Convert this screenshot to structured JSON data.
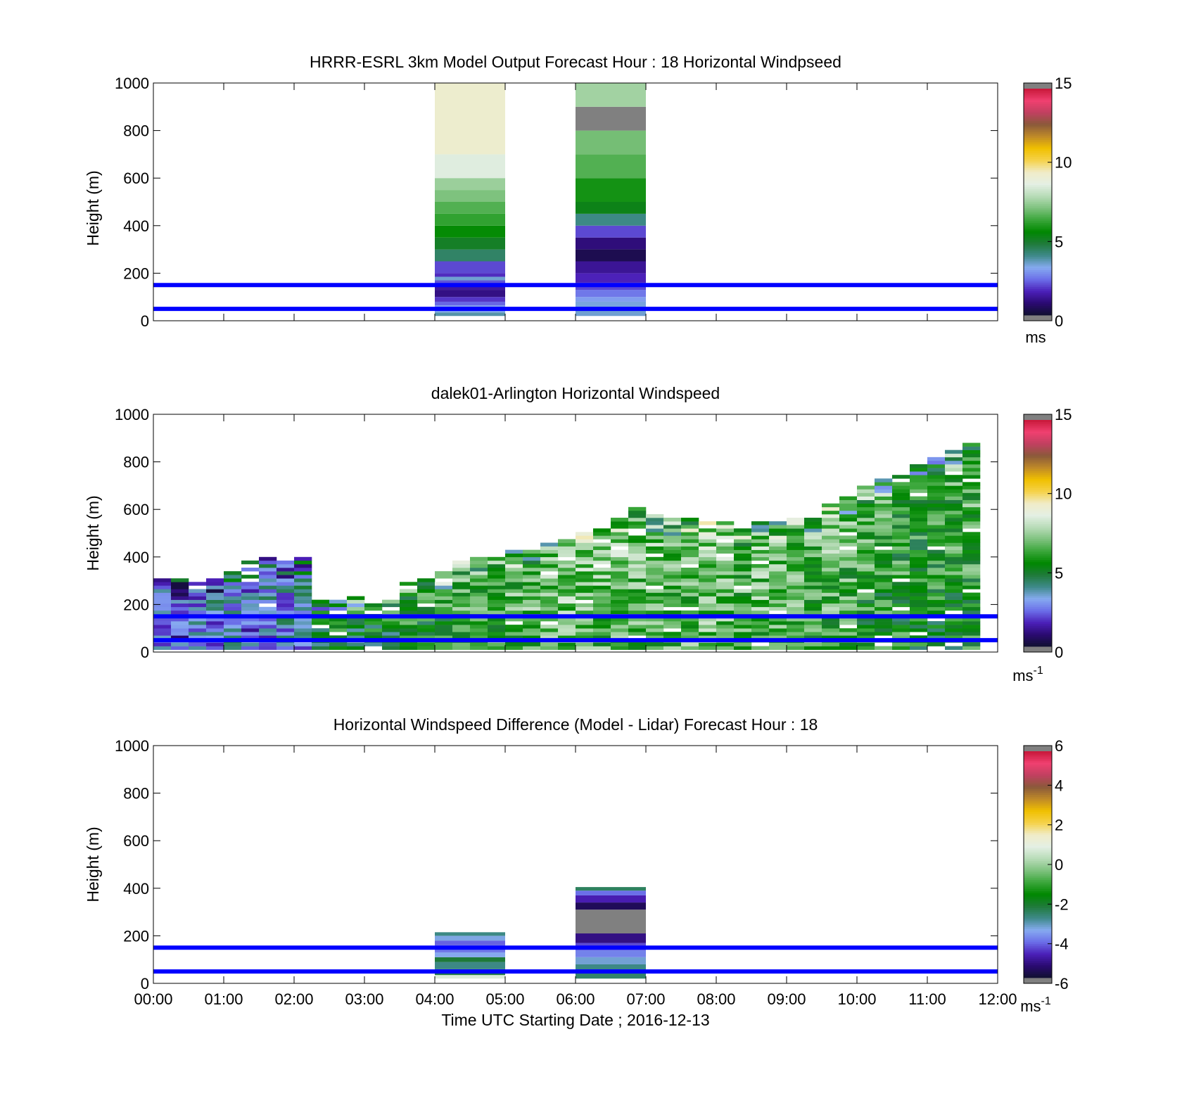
{
  "figure": {
    "xlabel": "Time UTC  Starting Date ; 2016-12-13",
    "ref_line_color": "#0000ff",
    "ref_line_heights": [
      50,
      150
    ]
  },
  "colormaps": {
    "speed": [
      "#101030",
      "#2a0a70",
      "#4b1fb8",
      "#6b6ee8",
      "#86aaf0",
      "#3f8a8a",
      "#1f7a3a",
      "#008800",
      "#3aa63a",
      "#7ec27e",
      "#b8dcb8",
      "#e4efe4",
      "#f0ecc8",
      "#f5d24a",
      "#f0c000",
      "#c08a28",
      "#8a5a3a",
      "#c04060",
      "#f04070",
      "#c8183a"
    ],
    "diff": [
      "#101030",
      "#2a0a70",
      "#4b1fb8",
      "#6b6ee8",
      "#86aaf0",
      "#3f8a8a",
      "#1f7a3a",
      "#008800",
      "#3aa63a",
      "#7ec27e",
      "#b8dcb8",
      "#e4efe4",
      "#f0ecc8",
      "#f5d24a",
      "#f0c000",
      "#c08a28",
      "#8a5a3a",
      "#c04060",
      "#f04070",
      "#c8183a"
    ],
    "cap_color": "#808080"
  },
  "chart_data": [
    {
      "type": "heatmap",
      "title": "HRRR-ESRL 3km Model Output   Forecast Hour : 18 Horizontal Windpseed",
      "xlabel": "",
      "ylabel": "Height (m)",
      "ylim": [
        0,
        1000
      ],
      "xlim_hours": [
        0,
        12
      ],
      "x_ticks": [
        "00:00",
        "01:00",
        "02:00",
        "03:00",
        "04:00",
        "05:00",
        "06:00",
        "07:00",
        "08:00",
        "09:00",
        "10:00",
        "11:00",
        "12:00"
      ],
      "show_x_tick_labels": false,
      "y_ticks": [
        "0",
        "200",
        "400",
        "600",
        "800",
        "1000"
      ],
      "colorbar": {
        "min": 0,
        "max": 15,
        "ticks": [
          "0",
          "5",
          "10",
          "15"
        ],
        "unit": "ms",
        "unit_sup": "",
        "colormap": "speed"
      },
      "columns": [
        {
          "start": "04:00",
          "end": "05:00",
          "cells": [
            {
              "from": 20,
              "to": 35,
              "value": 3.7
            },
            {
              "from": 35,
              "to": 50,
              "value": 3.2
            },
            {
              "from": 50,
              "to": 65,
              "value": 3.0
            },
            {
              "from": 65,
              "to": 80,
              "value": 2.3
            },
            {
              "from": 80,
              "to": 100,
              "value": 1.8
            },
            {
              "from": 100,
              "to": 130,
              "value": 1.0
            },
            {
              "from": 130,
              "to": 150,
              "value": 1.3
            },
            {
              "from": 150,
              "to": 170,
              "value": 2.1
            },
            {
              "from": 170,
              "to": 185,
              "value": 3.4
            },
            {
              "from": 185,
              "to": 200,
              "value": 1.7
            },
            {
              "from": 200,
              "to": 250,
              "value": 2.0
            },
            {
              "from": 250,
              "to": 300,
              "value": 4.3
            },
            {
              "from": 300,
              "to": 350,
              "value": 5.0
            },
            {
              "from": 350,
              "to": 400,
              "value": 5.6
            },
            {
              "from": 400,
              "to": 450,
              "value": 6.2
            },
            {
              "from": 450,
              "to": 500,
              "value": 6.6
            },
            {
              "from": 500,
              "to": 550,
              "value": 7.1
            },
            {
              "from": 550,
              "to": 600,
              "value": 7.5
            },
            {
              "from": 600,
              "to": 700,
              "value": 8.6
            },
            {
              "from": 700,
              "to": 1000,
              "value": 9.3
            }
          ]
        },
        {
          "start": "06:00",
          "end": "07:00",
          "cells": [
            {
              "from": 20,
              "to": 50,
              "value": 3.4
            },
            {
              "from": 50,
              "to": 80,
              "value": 3.3
            },
            {
              "from": 80,
              "to": 100,
              "value": 3.0
            },
            {
              "from": 100,
              "to": 130,
              "value": 2.5
            },
            {
              "from": 130,
              "to": 160,
              "value": 2.0
            },
            {
              "from": 160,
              "to": 200,
              "value": 1.6
            },
            {
              "from": 200,
              "to": 250,
              "value": 1.2
            },
            {
              "from": 250,
              "to": 300,
              "value": 0.4
            },
            {
              "from": 300,
              "to": 350,
              "value": 0.9
            },
            {
              "from": 350,
              "to": 400,
              "value": 2.0
            },
            {
              "from": 400,
              "to": 450,
              "value": 4.0
            },
            {
              "from": 450,
              "to": 500,
              "value": 5.2
            },
            {
              "from": 500,
              "to": 600,
              "value": 5.8
            },
            {
              "from": 600,
              "to": 700,
              "value": 6.6
            },
            {
              "from": 700,
              "to": 800,
              "value": 7.0
            },
            {
              "from": 800,
              "to": 900,
              "value": 15.5
            },
            {
              "from": 900,
              "to": 1000,
              "value": 7.6
            }
          ]
        }
      ]
    },
    {
      "type": "heatmap",
      "title": "dalek01-Arlington  Horizontal Windspeed",
      "xlabel": "",
      "ylabel": "Height (m)",
      "ylim": [
        0,
        1000
      ],
      "xlim_hours": [
        0,
        12
      ],
      "x_ticks": [
        "00:00",
        "01:00",
        "02:00",
        "03:00",
        "04:00",
        "05:00",
        "06:00",
        "07:00",
        "08:00",
        "09:00",
        "10:00",
        "11:00",
        "12:00"
      ],
      "show_x_tick_labels": false,
      "y_ticks": [
        "0",
        "200",
        "400",
        "600",
        "800",
        "1000"
      ],
      "colorbar": {
        "min": 0,
        "max": 15,
        "ticks": [
          "0",
          "5",
          "10",
          "15"
        ],
        "unit": "ms",
        "unit_sup": "-1",
        "colormap": "speed"
      },
      "profile_interval_minutes": 15,
      "top_height_per_profile": [
        300,
        300,
        290,
        300,
        330,
        380,
        390,
        380,
        390,
        220,
        220,
        230,
        220,
        230,
        290,
        310,
        330,
        380,
        390,
        400,
        420,
        430,
        460,
        470,
        500,
        520,
        560,
        600,
        570,
        560,
        560,
        540,
        540,
        520,
        540,
        550,
        560,
        580,
        620,
        650,
        700,
        720,
        760,
        780,
        820,
        850,
        880
      ],
      "mean_speed_per_profile": [
        2.2,
        2.0,
        2.6,
        2.8,
        3.1,
        2.4,
        2.7,
        3.0,
        3.3,
        5.0,
        5.0,
        5.1,
        5.0,
        5.2,
        5.4,
        5.6,
        5.8,
        6.0,
        6.1,
        6.2,
        6.3,
        6.4,
        6.6,
        6.8,
        6.7,
        6.5,
        6.6,
        6.4,
        6.5,
        6.3,
        6.4,
        6.7,
        6.6,
        6.2,
        6.5,
        6.4,
        6.3,
        6.2,
        6.3,
        6.0,
        5.8,
        5.6,
        5.5,
        5.4,
        5.3,
        5.5,
        5.6
      ]
    },
    {
      "type": "heatmap",
      "title": "Horizontal Windspeed Difference (Model - Lidar) Forecast Hour : 18",
      "xlabel": "Time UTC  Starting Date ; 2016-12-13",
      "ylabel": "Height (m)",
      "ylim": [
        0,
        1000
      ],
      "xlim_hours": [
        0,
        12
      ],
      "x_ticks": [
        "00:00",
        "01:00",
        "02:00",
        "03:00",
        "04:00",
        "05:00",
        "06:00",
        "07:00",
        "08:00",
        "09:00",
        "10:00",
        "11:00",
        "12:00"
      ],
      "show_x_tick_labels": true,
      "y_ticks": [
        "0",
        "200",
        "400",
        "600",
        "800",
        "1000"
      ],
      "colorbar": {
        "min": -6,
        "max": 6,
        "ticks": [
          "-6",
          "-4",
          "-2",
          "0",
          "2",
          "4",
          "6"
        ],
        "unit": "ms",
        "unit_sup": "-1",
        "colormap": "diff"
      },
      "columns": [
        {
          "start": "04:00",
          "end": "05:00",
          "cells": [
            {
              "from": 20,
              "to": 35,
              "value": 0.8
            },
            {
              "from": 35,
              "to": 60,
              "value": -2.3
            },
            {
              "from": 60,
              "to": 90,
              "value": -2.8
            },
            {
              "from": 90,
              "to": 110,
              "value": -2.2
            },
            {
              "from": 110,
              "to": 130,
              "value": -3.5
            },
            {
              "from": 130,
              "to": 160,
              "value": -4.0
            },
            {
              "from": 160,
              "to": 180,
              "value": -4.2
            },
            {
              "from": 180,
              "to": 200,
              "value": -3.4
            },
            {
              "from": 200,
              "to": 215,
              "value": -2.8
            }
          ]
        },
        {
          "start": "06:00",
          "end": "07:00",
          "cells": [
            {
              "from": 20,
              "to": 50,
              "value": -2.6
            },
            {
              "from": 50,
              "to": 80,
              "value": -2.8
            },
            {
              "from": 80,
              "to": 110,
              "value": -3.3
            },
            {
              "from": 110,
              "to": 140,
              "value": -3.9
            },
            {
              "from": 140,
              "to": 170,
              "value": -4.4
            },
            {
              "from": 170,
              "to": 210,
              "value": -5.2
            },
            {
              "from": 210,
              "to": 310,
              "value": 6.5
            },
            {
              "from": 310,
              "to": 340,
              "value": -5.6
            },
            {
              "from": 340,
              "to": 370,
              "value": -4.8
            },
            {
              "from": 370,
              "to": 390,
              "value": -4.1
            },
            {
              "from": 390,
              "to": 405,
              "value": -2.5
            }
          ]
        }
      ]
    }
  ]
}
